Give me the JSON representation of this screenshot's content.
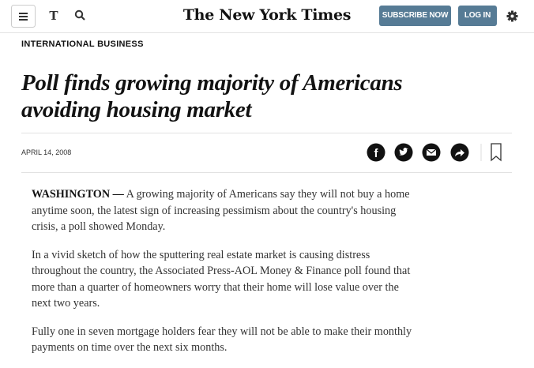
{
  "header": {
    "logo": "The New York Times",
    "subscribe": "SUBSCRIBE NOW",
    "login": "LOG IN"
  },
  "article": {
    "section": "INTERNATIONAL BUSINESS",
    "headline": "Poll finds growing majority of Americans avoiding housing market",
    "date": "APRIL 14, 2008",
    "paragraphs": [
      {
        "dateline": "WASHINGTON —",
        "text": "A growing majority of Americans say they will not buy a home anytime soon, the latest sign of increasing pessimism about the country's housing crisis, a poll showed Monday."
      },
      {
        "text": "In a vivid sketch of how the sputtering real estate market is causing distress throughout the country, the Associated Press-AOL Money & Finance poll found that more than a quarter of homeowners worry that their home will lose value over the next two years."
      },
      {
        "text": "Fully one in seven mortgage holders fear they will not be able to make their monthly payments on time over the next six months."
      }
    ]
  }
}
